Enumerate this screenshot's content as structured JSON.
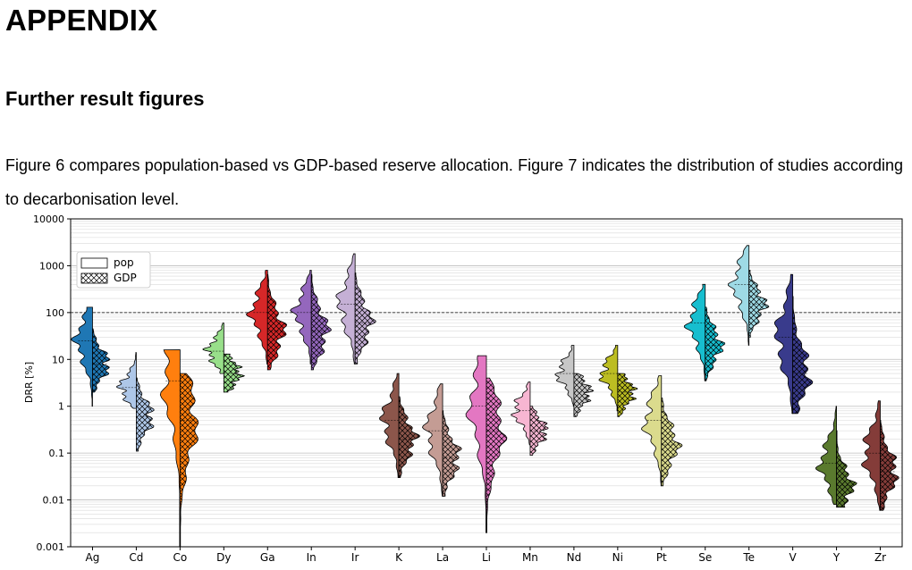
{
  "heading": "APPENDIX",
  "subheading": "Further result figures",
  "paragraph": "Figure 6 compares population-based vs GDP-based reserve allocation. Figure 7 indicates the distribution of studies according to decarbonisation level.",
  "chart_data": {
    "type": "violin",
    "title": "",
    "xlabel": "",
    "ylabel": "DRR [%]",
    "yscale": "log",
    "ylim": [
      0.001,
      10000
    ],
    "ytick_labels": [
      "0.001",
      "0.01",
      "0.1",
      "1",
      "10",
      "100",
      "1000",
      "10000"
    ],
    "reference_line": 100,
    "legend": {
      "placement": "top-left",
      "entries": [
        {
          "name": "pop",
          "hatch": "none"
        },
        {
          "name": "GDP",
          "hatch": "crosshatch"
        }
      ]
    },
    "categories": [
      "Ag",
      "Cd",
      "Co",
      "Dy",
      "Ga",
      "In",
      "Ir",
      "K",
      "La",
      "Li",
      "Mn",
      "Nd",
      "Ni",
      "Pt",
      "Se",
      "Te",
      "V",
      "Y",
      "Zr"
    ],
    "colors": [
      "#1f77b4",
      "#aec7e8",
      "#ff7f0e",
      "#98df8a",
      "#d62728",
      "#9467bd",
      "#c5b0d5",
      "#8c564b",
      "#c49c94",
      "#e377c2",
      "#f7b6d2",
      "#c7c7c7",
      "#bcbd22",
      "#dbdb8d",
      "#17becf",
      "#9edae5",
      "#393b8c",
      "#5a7a2e",
      "#843c39"
    ],
    "pop": [
      {
        "min": 1.0,
        "max": 130,
        "median": 25
      },
      {
        "min": 0.9,
        "max": 14,
        "median": 2.5
      },
      {
        "min": 0.001,
        "max": 16,
        "median": 3.5
      },
      {
        "min": 5,
        "max": 60,
        "median": 15
      },
      {
        "min": 8,
        "max": 800,
        "median": 100
      },
      {
        "min": 8,
        "max": 800,
        "median": 100
      },
      {
        "min": 8,
        "max": 1800,
        "median": 150
      },
      {
        "min": 0.03,
        "max": 5,
        "median": 0.5
      },
      {
        "min": 0.012,
        "max": 3,
        "median": 0.3
      },
      {
        "min": 0.002,
        "max": 12,
        "median": 1.0
      },
      {
        "min": 0.15,
        "max": 3.3,
        "median": 0.8
      },
      {
        "min": 1.0,
        "max": 20,
        "median": 5
      },
      {
        "min": 0.8,
        "max": 20,
        "median": 5
      },
      {
        "min": 0.02,
        "max": 4.5,
        "median": 0.5
      },
      {
        "min": 3.5,
        "max": 400,
        "median": 60
      },
      {
        "min": 20,
        "max": 2700,
        "median": 400
      },
      {
        "min": 0.7,
        "max": 650,
        "median": 30
      },
      {
        "min": 0.008,
        "max": 1.0,
        "median": 0.06
      },
      {
        "min": 0.006,
        "max": 1.3,
        "median": 0.1
      }
    ],
    "gdp": [
      {
        "min": 2,
        "max": 45,
        "median": 8
      },
      {
        "min": 0.11,
        "max": 4,
        "median": 0.6
      },
      {
        "min": 0.001,
        "max": 5,
        "median": 0.5
      },
      {
        "min": 2,
        "max": 13,
        "median": 5
      },
      {
        "min": 6,
        "max": 650,
        "median": 40
      },
      {
        "min": 6,
        "max": 650,
        "median": 40
      },
      {
        "min": 8,
        "max": 700,
        "median": 60
      },
      {
        "min": 0.03,
        "max": 1.6,
        "median": 0.2
      },
      {
        "min": 0.012,
        "max": 0.8,
        "median": 0.08
      },
      {
        "min": 0.002,
        "max": 4,
        "median": 0.3
      },
      {
        "min": 0.09,
        "max": 1.0,
        "median": 0.3
      },
      {
        "min": 0.6,
        "max": 5,
        "median": 2
      },
      {
        "min": 0.6,
        "max": 5,
        "median": 2
      },
      {
        "min": 0.02,
        "max": 1.5,
        "median": 0.15
      },
      {
        "min": 3.5,
        "max": 130,
        "median": 20
      },
      {
        "min": 30,
        "max": 800,
        "median": 150
      },
      {
        "min": 0.7,
        "max": 220,
        "median": 5
      },
      {
        "min": 0.007,
        "max": 0.3,
        "median": 0.02
      },
      {
        "min": 0.006,
        "max": 0.5,
        "median": 0.04
      }
    ]
  }
}
